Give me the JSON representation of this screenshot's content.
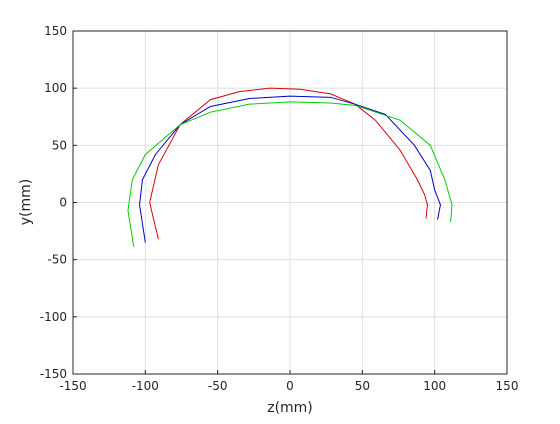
{
  "chart_data": {
    "type": "line",
    "xlabel": "z(mm)",
    "ylabel": "y(mm)",
    "xlim": [
      -150,
      150
    ],
    "ylim": [
      -150,
      150
    ],
    "xticks": [
      -150,
      -100,
      -50,
      0,
      50,
      100,
      150
    ],
    "yticks": [
      -150,
      -100,
      -50,
      0,
      50,
      100,
      150
    ],
    "grid": true,
    "series": [
      {
        "color": "#e00000",
        "x": [
          -91,
          -97,
          -91,
          -76,
          -55,
          -35,
          -14,
          7,
          28,
          45,
          59,
          76,
          88,
          93,
          95,
          94
        ],
        "values": [
          -32,
          0,
          33,
          68,
          90,
          97,
          100,
          99,
          95,
          86,
          72,
          46,
          20,
          7,
          -2,
          -14
        ]
      },
      {
        "color": "#0000d0",
        "x": [
          -100,
          -104,
          -102,
          -93,
          -76,
          -55,
          -28,
          0,
          28,
          45,
          66,
          86,
          97,
          100,
          104,
          102
        ],
        "values": [
          -35,
          -2,
          20,
          42,
          68,
          84,
          91,
          93,
          92,
          86,
          77,
          50,
          28,
          11,
          -2,
          -15
        ]
      },
      {
        "color": "#00d000",
        "x": [
          -108,
          -112,
          -109,
          -100,
          -76,
          -55,
          -28,
          0,
          28,
          45,
          76,
          97,
          107,
          112,
          111
        ],
        "values": [
          -39,
          -7,
          20,
          42,
          68,
          79,
          86,
          88,
          87,
          85,
          72,
          50,
          20,
          -2,
          -17
        ]
      }
    ]
  }
}
